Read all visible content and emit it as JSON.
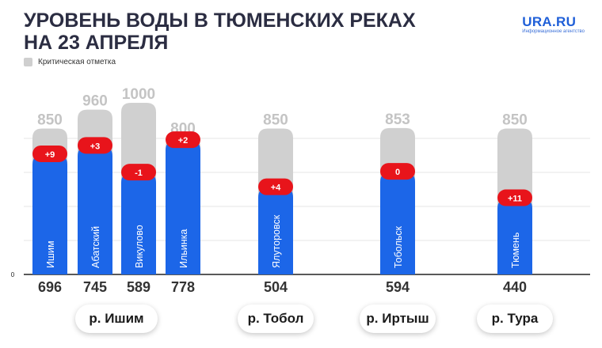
{
  "header": {
    "title_line1": "УРОВЕНЬ ВОДЫ В ТЮМЕНСКИХ РЕКАХ",
    "title_line2": "НА 23 АПРЕЛЯ",
    "logo_main": "URA.RU",
    "logo_sub": "Информационное агентство"
  },
  "legend": {
    "label": "Критическая отметка"
  },
  "colors": {
    "critical": "#d0d0d0",
    "level": "#1c66e8",
    "change": "#e8141b",
    "grid": "#e6e6e6",
    "text": "#3a3a3a"
  },
  "chart_data": {
    "type": "bar",
    "categories": [
      "Ишим",
      "Абатский",
      "Викулово",
      "Ильинка",
      "Ялуторовск",
      "Тобольск",
      "Тюмень"
    ],
    "series": [
      {
        "name": "Критическая отметка",
        "values": [
          850,
          960,
          1000,
          800,
          850,
          853,
          850
        ]
      },
      {
        "values": [
          696,
          745,
          589,
          778,
          504,
          594,
          440
        ]
      }
    ],
    "changes": [
      "+9",
      "+3",
      "-1",
      "+2",
      "+4",
      "0",
      "+11"
    ],
    "ylim": [
      0,
      1000
    ],
    "y_ticks": [
      "0"
    ],
    "grid": true,
    "groups": [
      {
        "label": "р. Ишим",
        "stations": [
          0,
          1,
          2,
          3
        ]
      },
      {
        "label": "р. Тобол",
        "stations": [
          4
        ]
      },
      {
        "label": "р. Иртыш",
        "stations": [
          5
        ]
      },
      {
        "label": "р. Тура",
        "stations": [
          6
        ]
      }
    ]
  }
}
